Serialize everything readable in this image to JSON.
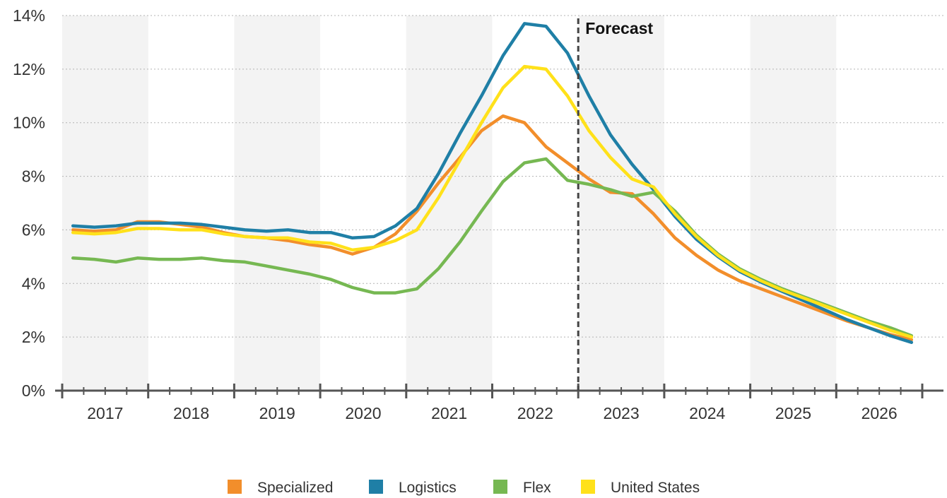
{
  "chart_data": {
    "type": "line",
    "title": "",
    "xlabel": "",
    "ylabel": "",
    "categories": [
      "2017",
      "2018",
      "2019",
      "2020",
      "2021",
      "2022",
      "2023",
      "2024",
      "2025",
      "2026"
    ],
    "x_range": [
      2016.5,
      2026.5
    ],
    "ylim": [
      0,
      14
    ],
    "y_ticks": [
      0,
      2,
      4,
      6,
      8,
      10,
      12,
      14
    ],
    "y_tick_labels": [
      "0%",
      "2%",
      "4%",
      "6%",
      "8%",
      "10%",
      "12%",
      "14%"
    ],
    "grid": "horizontal dotted lines, alternating shaded year bands",
    "legend_position": "bottom",
    "forecast": {
      "label": "Forecast",
      "x": 2022.5
    },
    "series": [
      {
        "name": "Specialized",
        "color": "#f28e2b",
        "x": [
          2016.625,
          2016.875,
          2017.125,
          2017.375,
          2017.625,
          2017.875,
          2018.125,
          2018.375,
          2018.625,
          2018.875,
          2019.125,
          2019.375,
          2019.625,
          2019.875,
          2020.125,
          2020.375,
          2020.625,
          2020.875,
          2021.125,
          2021.375,
          2021.625,
          2021.875,
          2022.125,
          2022.375,
          2022.625,
          2022.875,
          2023.125,
          2023.375,
          2023.625,
          2023.875,
          2024.125,
          2024.375,
          2024.625,
          2024.875,
          2025.125,
          2025.375,
          2025.625,
          2025.875,
          2026.125,
          2026.375
        ],
        "values": [
          6.0,
          5.95,
          6.0,
          6.3,
          6.3,
          6.2,
          6.1,
          5.9,
          5.75,
          5.7,
          5.6,
          5.45,
          5.35,
          5.1,
          5.35,
          5.85,
          6.7,
          7.75,
          8.7,
          9.7,
          10.25,
          10.0,
          9.1,
          8.5,
          7.9,
          7.4,
          7.35,
          6.6,
          5.7,
          5.05,
          4.5,
          4.1,
          3.8,
          3.5,
          3.2,
          2.9,
          2.6,
          2.35,
          2.1,
          1.9
        ]
      },
      {
        "name": "Logistics",
        "color": "#1f7fa6",
        "x": [
          2016.625,
          2016.875,
          2017.125,
          2017.375,
          2017.625,
          2017.875,
          2018.125,
          2018.375,
          2018.625,
          2018.875,
          2019.125,
          2019.375,
          2019.625,
          2019.875,
          2020.125,
          2020.375,
          2020.625,
          2020.875,
          2021.125,
          2021.375,
          2021.625,
          2021.875,
          2022.125,
          2022.375,
          2022.625,
          2022.875,
          2023.125,
          2023.375,
          2023.625,
          2023.875,
          2024.125,
          2024.375,
          2024.625,
          2024.875,
          2025.125,
          2025.375,
          2025.625,
          2025.875,
          2026.125,
          2026.375
        ],
        "values": [
          6.15,
          6.1,
          6.15,
          6.25,
          6.25,
          6.25,
          6.2,
          6.1,
          6.0,
          5.95,
          6.0,
          5.9,
          5.9,
          5.7,
          5.75,
          6.15,
          6.8,
          8.1,
          9.6,
          11.0,
          12.5,
          13.7,
          13.6,
          12.6,
          11.0,
          9.55,
          8.45,
          7.5,
          6.5,
          5.65,
          5.0,
          4.45,
          4.05,
          3.7,
          3.35,
          3.0,
          2.65,
          2.35,
          2.05,
          1.8
        ]
      },
      {
        "name": "Flex",
        "color": "#76b852",
        "x": [
          2016.625,
          2016.875,
          2017.125,
          2017.375,
          2017.625,
          2017.875,
          2018.125,
          2018.375,
          2018.625,
          2018.875,
          2019.125,
          2019.375,
          2019.625,
          2019.875,
          2020.125,
          2020.375,
          2020.625,
          2020.875,
          2021.125,
          2021.375,
          2021.625,
          2021.875,
          2022.125,
          2022.375,
          2022.625,
          2022.875,
          2023.125,
          2023.375,
          2023.625,
          2023.875,
          2024.125,
          2024.375,
          2024.625,
          2024.875,
          2025.125,
          2025.375,
          2025.625,
          2025.875,
          2026.125,
          2026.375
        ],
        "values": [
          4.95,
          4.9,
          4.8,
          4.95,
          4.9,
          4.9,
          4.95,
          4.85,
          4.8,
          4.65,
          4.5,
          4.35,
          4.15,
          3.85,
          3.65,
          3.65,
          3.8,
          4.55,
          5.55,
          6.7,
          7.8,
          8.5,
          8.65,
          7.85,
          7.7,
          7.5,
          7.25,
          7.4,
          6.7,
          5.8,
          5.1,
          4.55,
          4.15,
          3.8,
          3.5,
          3.2,
          2.9,
          2.6,
          2.35,
          2.05
        ]
      },
      {
        "name": "United States",
        "color": "#ffe11a",
        "x": [
          2016.625,
          2016.875,
          2017.125,
          2017.375,
          2017.625,
          2017.875,
          2018.125,
          2018.375,
          2018.625,
          2018.875,
          2019.125,
          2019.375,
          2019.625,
          2019.875,
          2020.125,
          2020.375,
          2020.625,
          2020.875,
          2021.125,
          2021.375,
          2021.625,
          2021.875,
          2022.125,
          2022.375,
          2022.625,
          2022.875,
          2023.125,
          2023.375,
          2023.625,
          2023.875,
          2024.125,
          2024.375,
          2024.625,
          2024.875,
          2025.125,
          2025.375,
          2025.625,
          2025.875,
          2026.125,
          2026.375
        ],
        "values": [
          5.9,
          5.85,
          5.9,
          6.05,
          6.05,
          6.0,
          6.0,
          5.85,
          5.75,
          5.7,
          5.7,
          5.55,
          5.5,
          5.25,
          5.35,
          5.6,
          6.0,
          7.2,
          8.6,
          10.0,
          11.3,
          12.1,
          12.0,
          11.0,
          9.7,
          8.7,
          7.9,
          7.6,
          6.6,
          5.75,
          5.05,
          4.5,
          4.1,
          3.75,
          3.45,
          3.15,
          2.85,
          2.55,
          2.25,
          2.0
        ]
      }
    ]
  }
}
